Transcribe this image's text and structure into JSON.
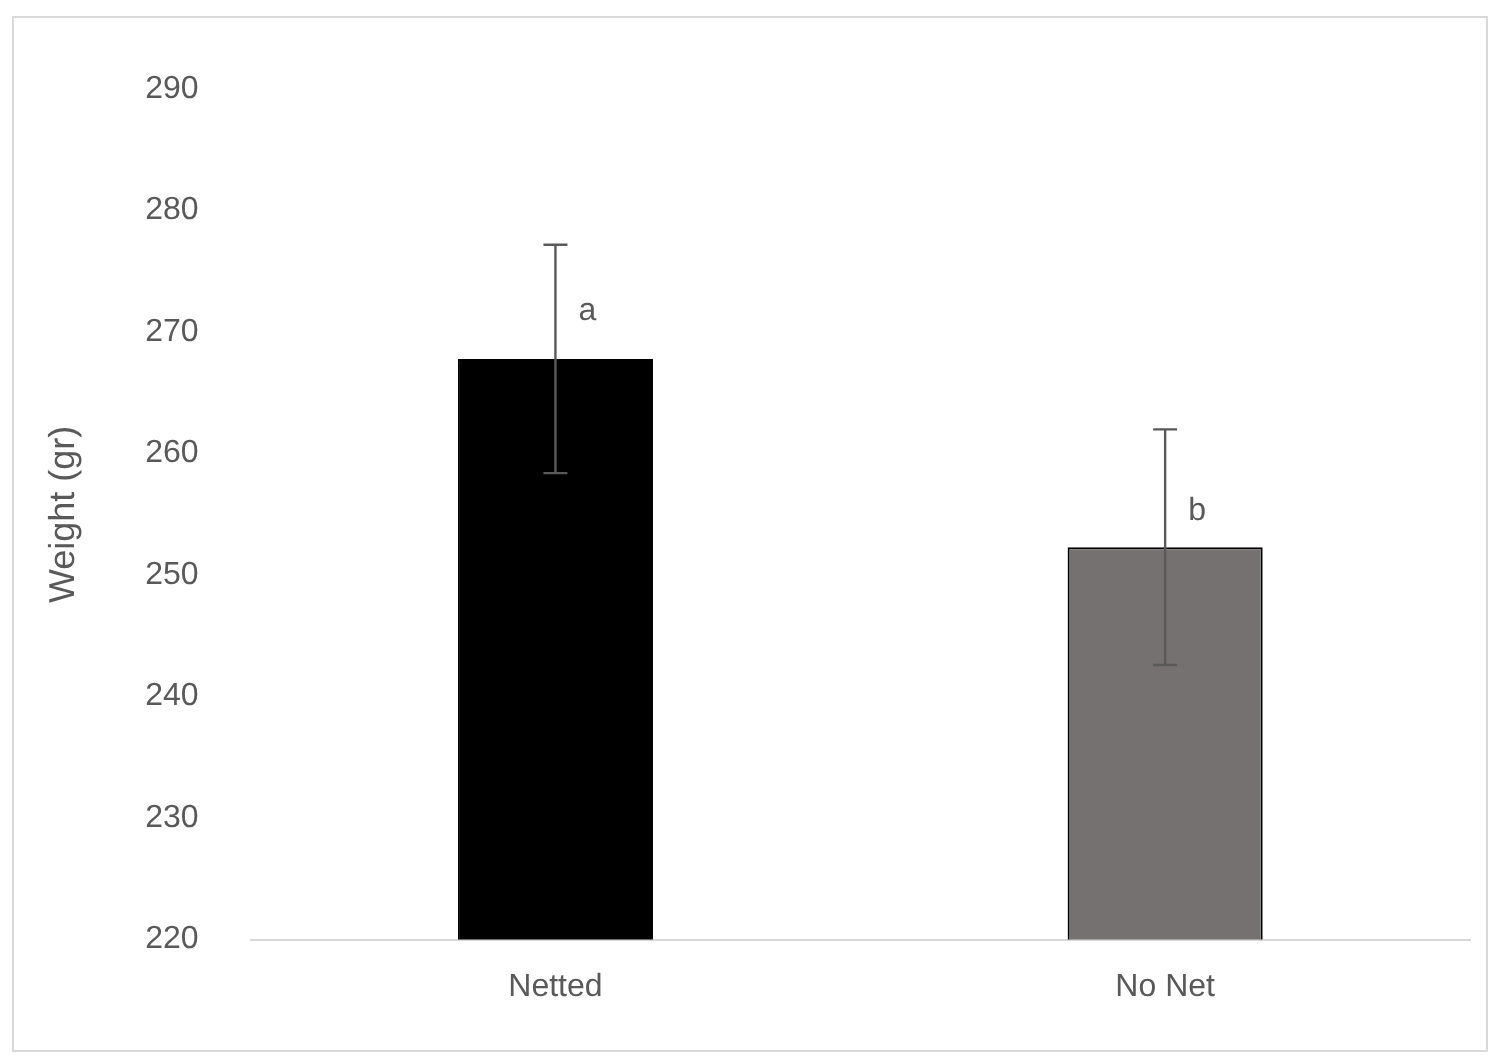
{
  "chart_data": {
    "type": "bar",
    "ylabel": "Weight (gr)",
    "categories": [
      "Netted",
      "No Net"
    ],
    "values": [
      267.8,
      252.3
    ],
    "errors": [
      9.4,
      9.7
    ],
    "colors": [
      "#000000",
      "#767171"
    ],
    "ylim": [
      220,
      290
    ],
    "yticks": [
      220,
      230,
      240,
      250,
      260,
      270,
      280,
      290
    ],
    "grid": false,
    "legend": false,
    "annotations": [
      {
        "text": "a",
        "x": "Netted",
        "y": 271.7
      },
      {
        "text": "b",
        "x": "No Net",
        "y": 255.3
      }
    ]
  }
}
